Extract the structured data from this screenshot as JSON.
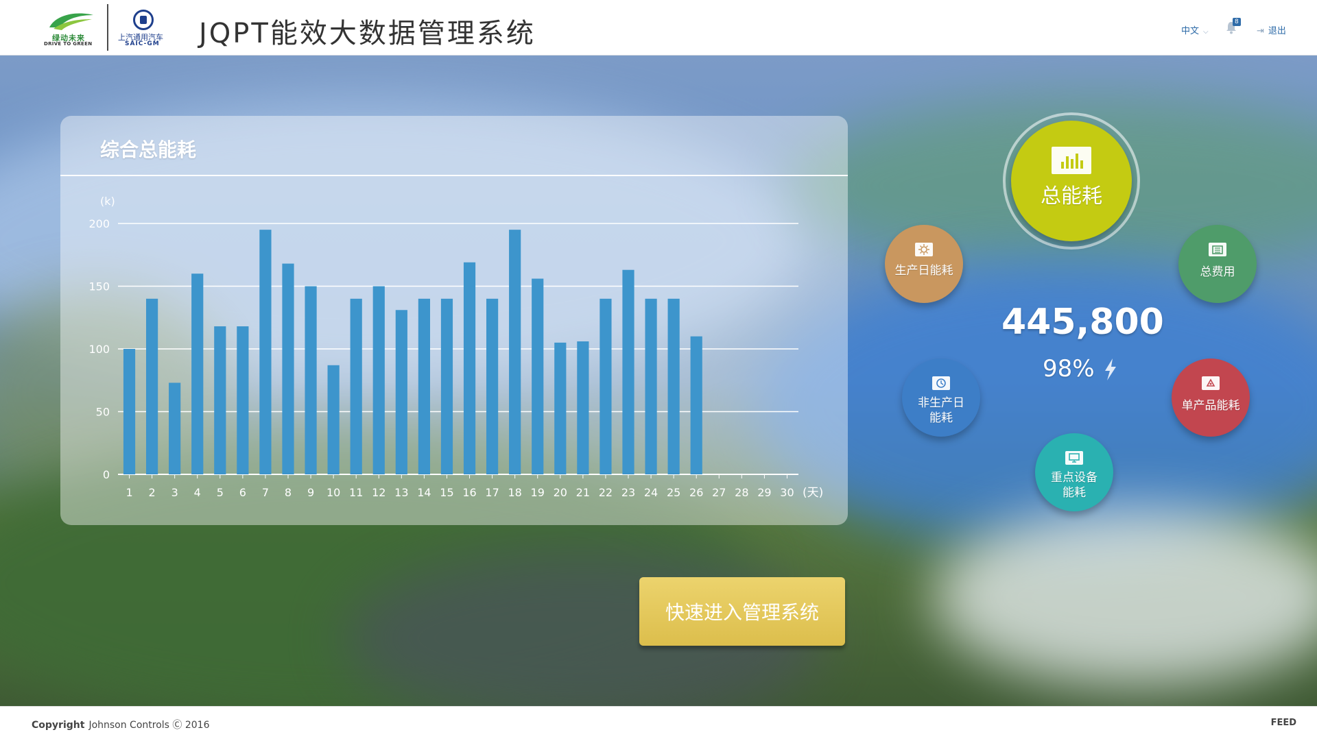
{
  "header": {
    "brand1_cn": "绿动未来",
    "brand1_en": "DRIVE TO GREEN",
    "brand2_cn": "上汽通用汽车",
    "brand2_en": "SAIC-GM",
    "title": "JQPT能效大数据管理系统",
    "language": "中文",
    "notification_count": "8",
    "logout": "退出"
  },
  "panel": {
    "title": "综合总能耗"
  },
  "chart_data": {
    "type": "bar",
    "title": "综合总能耗",
    "ylabel": "(k)",
    "xunit": "(天)",
    "ylim": [
      0,
      200
    ],
    "yticks": [
      0,
      50,
      100,
      150,
      200
    ],
    "categories": [
      "1",
      "2",
      "3",
      "4",
      "5",
      "6",
      "7",
      "8",
      "9",
      "10",
      "11",
      "12",
      "13",
      "14",
      "15",
      "16",
      "17",
      "18",
      "19",
      "20",
      "21",
      "22",
      "23",
      "24",
      "25",
      "26",
      "27",
      "28",
      "29",
      "30"
    ],
    "values": [
      100,
      140,
      73,
      160,
      118,
      118,
      195,
      168,
      150,
      87,
      140,
      150,
      131,
      140,
      140,
      169,
      140,
      195,
      156,
      105,
      106,
      140,
      163,
      140,
      140,
      110,
      null,
      null,
      null,
      null
    ],
    "bar_color": "#3d95cc",
    "grid": true
  },
  "circles": {
    "total": "总能耗",
    "prod": "生产日能耗",
    "fee": "总费用",
    "nonprod_line1": "非生产日",
    "nonprod_line2": "能耗",
    "unit": "单产品能耗",
    "key_line1": "重点设备",
    "key_line2": "能耗"
  },
  "summary": {
    "value": "445,800",
    "percent": "98%"
  },
  "enter_button": "快速进入管理系统",
  "footer": {
    "copyright_label": "Copyright",
    "copyright_text": "Johnson Controls Ⓒ 2016",
    "right": "FEED"
  }
}
